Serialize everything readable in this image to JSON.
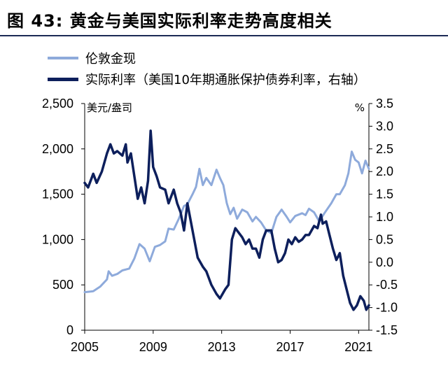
{
  "title": "图 43:  黄金与美国实际利率走势高度相关",
  "chart_data": {
    "type": "line",
    "x_ticks": [
      "2005",
      "2009",
      "2013",
      "2017",
      "2021"
    ],
    "x_range": [
      2005,
      2021.6
    ],
    "y_left": {
      "unit": "美元/盎司",
      "ticks": [
        "0",
        "500",
        "1,000",
        "1,500",
        "2,000",
        "2,500"
      ],
      "range": [
        0,
        2500
      ]
    },
    "y_right": {
      "unit": "%",
      "ticks": [
        "-1.5",
        "-1.0",
        "-0.5",
        "0.0",
        "0.5",
        "1.0",
        "1.5",
        "2.0",
        "2.5",
        "3.0",
        "3.5"
      ],
      "range": [
        -1.5,
        3.5
      ]
    },
    "series": [
      {
        "name": "伦敦金现",
        "axis": "left",
        "color": "#8eaadb",
        "points": [
          [
            2005.0,
            420
          ],
          [
            2005.5,
            430
          ],
          [
            2005.9,
            480
          ],
          [
            2006.3,
            560
          ],
          [
            2006.4,
            650
          ],
          [
            2006.6,
            600
          ],
          [
            2006.9,
            620
          ],
          [
            2007.2,
            660
          ],
          [
            2007.6,
            680
          ],
          [
            2007.9,
            790
          ],
          [
            2008.2,
            950
          ],
          [
            2008.5,
            900
          ],
          [
            2008.8,
            760
          ],
          [
            2009.1,
            920
          ],
          [
            2009.4,
            940
          ],
          [
            2009.7,
            980
          ],
          [
            2009.9,
            1120
          ],
          [
            2010.2,
            1110
          ],
          [
            2010.5,
            1230
          ],
          [
            2010.8,
            1370
          ],
          [
            2011.0,
            1390
          ],
          [
            2011.3,
            1500
          ],
          [
            2011.5,
            1580
          ],
          [
            2011.7,
            1780
          ],
          [
            2011.9,
            1600
          ],
          [
            2012.1,
            1680
          ],
          [
            2012.4,
            1600
          ],
          [
            2012.7,
            1770
          ],
          [
            2012.9,
            1680
          ],
          [
            2013.1,
            1600
          ],
          [
            2013.3,
            1400
          ],
          [
            2013.5,
            1280
          ],
          [
            2013.7,
            1350
          ],
          [
            2013.9,
            1230
          ],
          [
            2014.2,
            1330
          ],
          [
            2014.5,
            1300
          ],
          [
            2014.8,
            1200
          ],
          [
            2015.0,
            1250
          ],
          [
            2015.3,
            1190
          ],
          [
            2015.6,
            1100
          ],
          [
            2015.9,
            1070
          ],
          [
            2016.2,
            1250
          ],
          [
            2016.5,
            1330
          ],
          [
            2016.8,
            1250
          ],
          [
            2017.0,
            1190
          ],
          [
            2017.3,
            1260
          ],
          [
            2017.7,
            1290
          ],
          [
            2017.9,
            1270
          ],
          [
            2018.1,
            1340
          ],
          [
            2018.4,
            1300
          ],
          [
            2018.7,
            1200
          ],
          [
            2019.0,
            1290
          ],
          [
            2019.4,
            1400
          ],
          [
            2019.7,
            1500
          ],
          [
            2019.9,
            1500
          ],
          [
            2020.2,
            1600
          ],
          [
            2020.4,
            1730
          ],
          [
            2020.6,
            1970
          ],
          [
            2020.8,
            1880
          ],
          [
            2021.0,
            1850
          ],
          [
            2021.2,
            1730
          ],
          [
            2021.4,
            1870
          ],
          [
            2021.6,
            1780
          ]
        ]
      },
      {
        "name": "实际利率（美国10年期通胀保护债券利率，右轴）",
        "axis": "right",
        "color": "#0d1f5c",
        "points": [
          [
            2005.0,
            1.75
          ],
          [
            2005.2,
            1.65
          ],
          [
            2005.5,
            1.95
          ],
          [
            2005.7,
            1.75
          ],
          [
            2006.0,
            2.0
          ],
          [
            2006.3,
            2.4
          ],
          [
            2006.5,
            2.6
          ],
          [
            2006.7,
            2.4
          ],
          [
            2006.9,
            2.45
          ],
          [
            2007.2,
            2.35
          ],
          [
            2007.4,
            2.6
          ],
          [
            2007.5,
            2.2
          ],
          [
            2007.7,
            2.4
          ],
          [
            2007.9,
            1.9
          ],
          [
            2008.1,
            1.4
          ],
          [
            2008.3,
            1.65
          ],
          [
            2008.5,
            1.3
          ],
          [
            2008.7,
            1.8
          ],
          [
            2008.85,
            2.9
          ],
          [
            2009.0,
            2.1
          ],
          [
            2009.2,
            1.9
          ],
          [
            2009.4,
            1.65
          ],
          [
            2009.7,
            1.6
          ],
          [
            2009.9,
            1.3
          ],
          [
            2010.2,
            1.6
          ],
          [
            2010.4,
            1.3
          ],
          [
            2010.6,
            1.1
          ],
          [
            2010.8,
            0.7
          ],
          [
            2011.0,
            1.3
          ],
          [
            2011.2,
            0.9
          ],
          [
            2011.4,
            0.5
          ],
          [
            2011.6,
            0.1
          ],
          [
            2011.9,
            -0.1
          ],
          [
            2012.1,
            -0.2
          ],
          [
            2012.4,
            -0.5
          ],
          [
            2012.7,
            -0.7
          ],
          [
            2012.9,
            -0.8
          ],
          [
            2013.2,
            -0.6
          ],
          [
            2013.4,
            -0.5
          ],
          [
            2013.6,
            0.5
          ],
          [
            2013.8,
            0.75
          ],
          [
            2014.0,
            0.65
          ],
          [
            2014.2,
            0.55
          ],
          [
            2014.4,
            0.4
          ],
          [
            2014.6,
            0.5
          ],
          [
            2014.8,
            0.3
          ],
          [
            2015.0,
            0.3
          ],
          [
            2015.2,
            0.1
          ],
          [
            2015.4,
            0.5
          ],
          [
            2015.6,
            0.7
          ],
          [
            2015.9,
            0.7
          ],
          [
            2016.1,
            0.3
          ],
          [
            2016.3,
            0.0
          ],
          [
            2016.5,
            0.05
          ],
          [
            2016.7,
            0.2
          ],
          [
            2016.9,
            0.5
          ],
          [
            2017.1,
            0.4
          ],
          [
            2017.3,
            0.55
          ],
          [
            2017.5,
            0.45
          ],
          [
            2017.7,
            0.5
          ],
          [
            2017.9,
            0.6
          ],
          [
            2018.1,
            0.6
          ],
          [
            2018.4,
            0.8
          ],
          [
            2018.6,
            0.75
          ],
          [
            2018.8,
            1.05
          ],
          [
            2018.9,
            0.85
          ],
          [
            2019.1,
            0.9
          ],
          [
            2019.3,
            0.6
          ],
          [
            2019.5,
            0.3
          ],
          [
            2019.7,
            0.05
          ],
          [
            2019.9,
            0.2
          ],
          [
            2020.1,
            -0.3
          ],
          [
            2020.3,
            -0.6
          ],
          [
            2020.5,
            -0.9
          ],
          [
            2020.7,
            -1.05
          ],
          [
            2020.9,
            -0.95
          ],
          [
            2021.1,
            -0.75
          ],
          [
            2021.3,
            -0.85
          ],
          [
            2021.45,
            -1.05
          ],
          [
            2021.6,
            -0.95
          ]
        ]
      }
    ]
  }
}
